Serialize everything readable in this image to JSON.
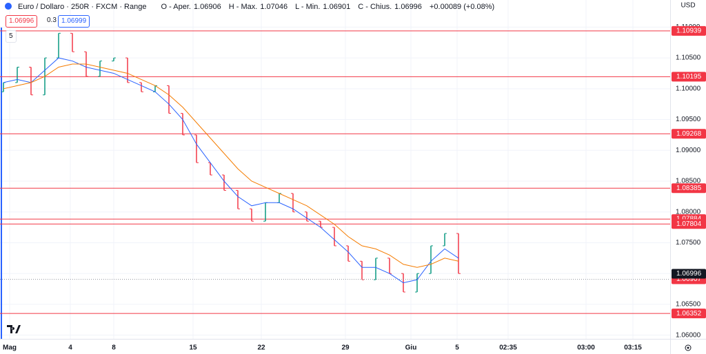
{
  "chart_data": {
    "type": "range",
    "title": "Euro / Dollaro · 250R · FXCM · Range",
    "ohlc_labels": [
      "O - Aper.",
      "H - Max.",
      "L - Min.",
      "C - Chius."
    ],
    "ohlc_values": [
      1.06906,
      1.07046,
      1.06901,
      1.06996
    ],
    "change": "+0.00089 (+0.08%)",
    "sell_price": 1.06996,
    "spread": 0.3,
    "buy_price": 1.06999,
    "interval_badge": "5",
    "currency": "USD",
    "up_color": "#089981",
    "down_color": "#f23645",
    "x": [
      0,
      1,
      2,
      3,
      4,
      5,
      6,
      7,
      8,
      9,
      10,
      11,
      12,
      13,
      14,
      15,
      16,
      17,
      18,
      19,
      20,
      21,
      22,
      23,
      24,
      25,
      26,
      27,
      28,
      29,
      30,
      31,
      32,
      33
    ],
    "open": [
      1.0995,
      1.101,
      1.1035,
      1.099,
      1.105,
      1.109,
      1.106,
      1.102,
      1.1045,
      1.105,
      1.101,
      1.0995,
      1.1005,
      1.096,
      1.0925,
      1.088,
      1.086,
      1.0835,
      1.0805,
      1.0785,
      1.0815,
      1.083,
      1.08,
      1.0785,
      1.0775,
      1.0745,
      1.072,
      1.069,
      1.0725,
      1.07,
      1.067,
      1.07,
      1.0745,
      1.0765
    ],
    "close": [
      1.101,
      1.1035,
      1.099,
      1.105,
      1.109,
      1.106,
      1.102,
      1.1045,
      1.105,
      1.101,
      1.0995,
      1.1005,
      1.096,
      1.0925,
      1.088,
      1.086,
      1.0835,
      1.0805,
      1.0785,
      1.0815,
      1.083,
      1.08,
      1.0785,
      1.0775,
      1.0745,
      1.072,
      1.069,
      1.0725,
      1.07,
      1.067,
      1.07,
      1.0745,
      1.0765,
      1.07
    ],
    "series": [
      {
        "color": "#2962ff",
        "values": [
          1.101,
          1.1015,
          1.101,
          1.103,
          1.105,
          1.1045,
          1.1035,
          1.103,
          1.1025,
          1.1015,
          1.1005,
          1.0995,
          1.0975,
          1.095,
          1.091,
          1.088,
          1.085,
          1.0825,
          1.081,
          1.0815,
          1.0815,
          1.0805,
          1.079,
          1.0775,
          1.0755,
          1.0735,
          1.071,
          1.071,
          1.07,
          1.0685,
          1.069,
          1.072,
          1.074,
          1.0725
        ]
      },
      {
        "color": "#f57c00",
        "values": [
          1.1,
          1.1005,
          1.101,
          1.102,
          1.1035,
          1.104,
          1.104,
          1.1035,
          1.103,
          1.1025,
          1.1015,
          1.1005,
          1.099,
          1.097,
          1.0945,
          1.092,
          1.0895,
          1.087,
          1.085,
          1.084,
          1.083,
          1.082,
          1.081,
          1.0795,
          1.078,
          1.076,
          1.0745,
          1.074,
          1.073,
          1.0715,
          1.071,
          1.0715,
          1.0725,
          1.072
        ]
      }
    ],
    "levels": [
      1.10939,
      1.10195,
      1.09268,
      1.08385,
      1.07884,
      1.07804,
      1.06352
    ],
    "level_color": "#f23645",
    "last_price": 1.06996,
    "last_color": "#131722",
    "bid_price": 1.06907,
    "xlim": [
      -0.25,
      48.35
    ],
    "xticks": [
      {
        "value": 0.45,
        "label": "Mag"
      },
      {
        "value": 4.85,
        "label": "4"
      },
      {
        "value": 8,
        "label": "8"
      },
      {
        "value": 13.75,
        "label": "15"
      },
      {
        "value": 18.7,
        "label": "22"
      },
      {
        "value": 24.8,
        "label": "29"
      },
      {
        "value": 29.55,
        "label": "Giu"
      },
      {
        "value": 32.9,
        "label": "5"
      },
      {
        "value": 36.6,
        "label": "02:35"
      },
      {
        "value": 42.25,
        "label": "03:00"
      },
      {
        "value": 45.65,
        "label": "03:15"
      }
    ],
    "ylim": [
      1.0594,
      1.1144
    ],
    "yticks": [
      {
        "value": 1.06,
        "label": "1.06000"
      },
      {
        "value": 1.065,
        "label": "1.06500"
      },
      {
        "value": 1.07,
        "label": "1.07000"
      },
      {
        "value": 1.075,
        "label": "1.07500"
      },
      {
        "value": 1.08,
        "label": "1.08000"
      },
      {
        "value": 1.085,
        "label": "1.08500"
      },
      {
        "value": 1.09,
        "label": "1.09000"
      },
      {
        "value": 1.095,
        "label": "1.09500"
      },
      {
        "value": 1.1,
        "label": "1.10000"
      },
      {
        "value": 1.105,
        "label": "1.10500"
      },
      {
        "value": 1.11,
        "label": "1.11000"
      }
    ],
    "grid": true
  }
}
